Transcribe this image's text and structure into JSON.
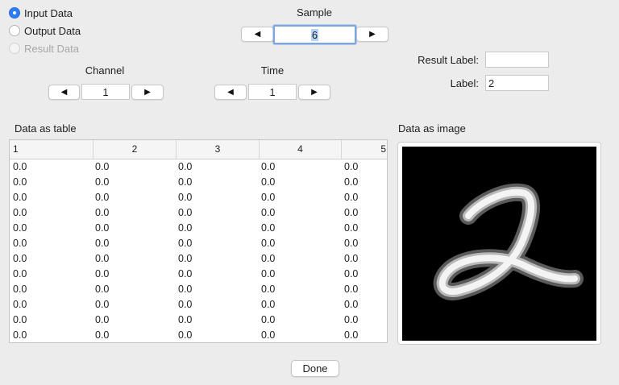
{
  "data_source": {
    "options": [
      {
        "label": "Input Data",
        "checked": true,
        "disabled": false
      },
      {
        "label": "Output Data",
        "checked": false,
        "disabled": false
      },
      {
        "label": "Result Data",
        "checked": false,
        "disabled": true
      }
    ]
  },
  "sample": {
    "label": "Sample",
    "value": "6",
    "prev_icon": "◀",
    "next_icon": "▶"
  },
  "channel": {
    "label": "Channel",
    "value": "1",
    "prev_icon": "◀",
    "next_icon": "▶"
  },
  "time": {
    "label": "Time",
    "value": "1",
    "prev_icon": "◀",
    "next_icon": "▶"
  },
  "result_label": {
    "label": "Result Label:",
    "value": ""
  },
  "label_field": {
    "label": "Label:",
    "value": "2"
  },
  "table": {
    "title": "Data as table",
    "columns": [
      "1",
      "2",
      "3",
      "4",
      "5"
    ],
    "rows": [
      [
        "0.0",
        "0.0",
        "0.0",
        "0.0",
        "0.0"
      ],
      [
        "0.0",
        "0.0",
        "0.0",
        "0.0",
        "0.0"
      ],
      [
        "0.0",
        "0.0",
        "0.0",
        "0.0",
        "0.0"
      ],
      [
        "0.0",
        "0.0",
        "0.0",
        "0.0",
        "0.0"
      ],
      [
        "0.0",
        "0.0",
        "0.0",
        "0.0",
        "0.0"
      ],
      [
        "0.0",
        "0.0",
        "0.0",
        "0.0",
        "0.0"
      ],
      [
        "0.0",
        "0.0",
        "0.0",
        "0.0",
        "0.0"
      ],
      [
        "0.0",
        "0.0",
        "0.0",
        "0.0",
        "0.0"
      ],
      [
        "0.0",
        "0.0",
        "0.0",
        "0.0",
        "0.0"
      ],
      [
        "0.0",
        "0.0",
        "0.0",
        "0.0",
        "0.0"
      ],
      [
        "0.0",
        "0.0",
        "0.0",
        "0.0",
        "0.0"
      ],
      [
        "0.0",
        "0.0",
        "0.0",
        "0.0",
        "0.0"
      ]
    ]
  },
  "image_panel": {
    "title": "Data as image",
    "digit_shown": "2"
  },
  "done_button": {
    "label": "Done"
  }
}
